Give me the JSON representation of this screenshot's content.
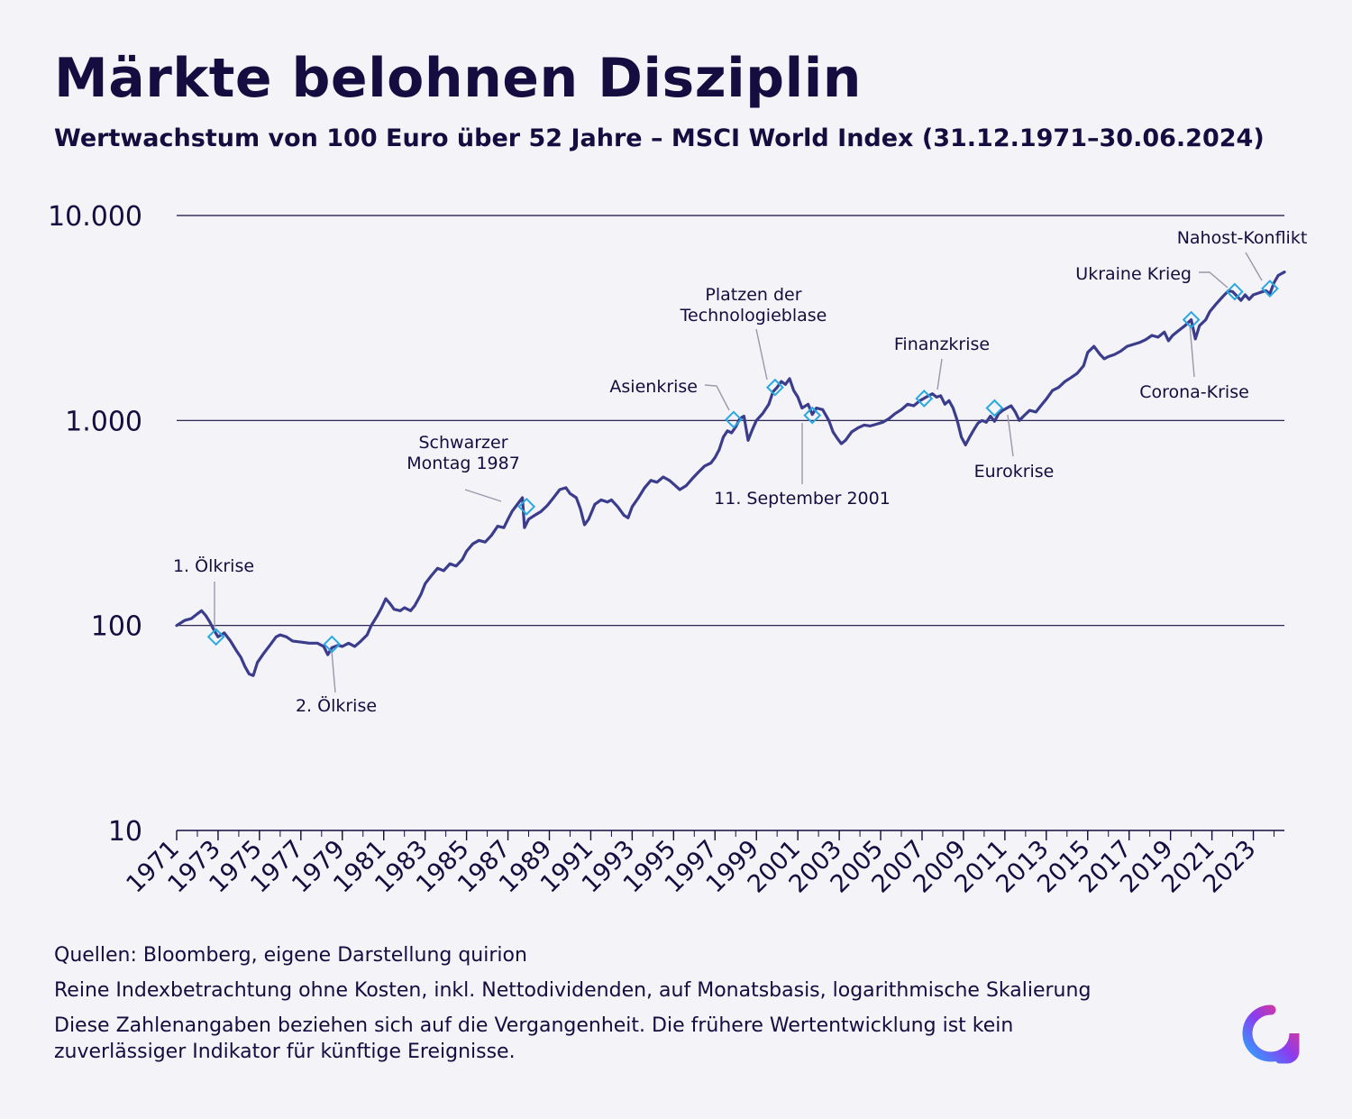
{
  "header": {
    "title": "Märkte belohnen Disziplin",
    "subtitle": "Wertwachstum von 100 Euro über 52 Jahre – MSCI World Index (31.12.1971–30.06.2024)"
  },
  "footer": {
    "sources": "Quellen: Bloomberg, eigene Darstellung quirion",
    "note": "Reine Indexbetrachtung ohne Kosten, inkl. Nettodividenden, auf Monatsbasis, logarithmische Skalierung",
    "disclaimer": "Diese Zahlenangaben beziehen sich auf die Vergangenheit. Die frühere Wertentwicklung ist kein zuverlässiger Indikator für künftige Ereignisse."
  },
  "colors": {
    "line": "#3b3d8c",
    "marker": "#29a8e0",
    "text": "#150d3f",
    "gridline": "#150d3f",
    "background": "#f3f3f8"
  },
  "logo": {
    "icon": "quirion-logo-icon"
  },
  "chart_data": {
    "type": "line",
    "title": "",
    "xlabel": "",
    "ylabel": "",
    "y_scale": "log",
    "xlim": [
      1971,
      2024.5
    ],
    "ylim": [
      10,
      10000
    ],
    "grid": "horizontal",
    "y_ticks": [
      {
        "value": 10,
        "label": "10"
      },
      {
        "value": 100,
        "label": "100"
      },
      {
        "value": 1000,
        "label": "1.000"
      },
      {
        "value": 10000,
        "label": "10.000"
      }
    ],
    "x_ticks": [
      "1971",
      "1973",
      "1975",
      "1977",
      "1979",
      "1981",
      "1983",
      "1985",
      "1987",
      "1989",
      "1991",
      "1993",
      "1995",
      "1997",
      "1999",
      "2001",
      "2003",
      "2005",
      "2007",
      "2009",
      "2011",
      "2013",
      "2015",
      "2017",
      "2019",
      "2021",
      "2023"
    ],
    "series": [
      {
        "values": [
          [
            1971.0,
            100
          ],
          [
            1971.4,
            106
          ],
          [
            1971.7,
            108
          ],
          [
            1972.0,
            114
          ],
          [
            1972.2,
            118
          ],
          [
            1972.4,
            112
          ],
          [
            1972.6,
            104
          ],
          [
            1972.8,
            95
          ],
          [
            1973.0,
            88
          ],
          [
            1973.3,
            92
          ],
          [
            1973.6,
            84
          ],
          [
            1973.9,
            75
          ],
          [
            1974.1,
            70
          ],
          [
            1974.3,
            63
          ],
          [
            1974.5,
            58
          ],
          [
            1974.7,
            57
          ],
          [
            1974.9,
            66
          ],
          [
            1975.2,
            73
          ],
          [
            1975.5,
            80
          ],
          [
            1975.8,
            88
          ],
          [
            1976.0,
            90
          ],
          [
            1976.3,
            88
          ],
          [
            1976.6,
            84
          ],
          [
            1977.0,
            83
          ],
          [
            1977.4,
            82
          ],
          [
            1977.8,
            82
          ],
          [
            1978.1,
            79
          ],
          [
            1978.3,
            72
          ],
          [
            1978.5,
            78
          ],
          [
            1978.8,
            80
          ],
          [
            1979.0,
            79
          ],
          [
            1979.3,
            82
          ],
          [
            1979.6,
            79
          ],
          [
            1979.9,
            84
          ],
          [
            1980.2,
            90
          ],
          [
            1980.4,
            100
          ],
          [
            1980.7,
            112
          ],
          [
            1980.9,
            122
          ],
          [
            1981.1,
            135
          ],
          [
            1981.3,
            128
          ],
          [
            1981.5,
            120
          ],
          [
            1981.8,
            118
          ],
          [
            1982.0,
            122
          ],
          [
            1982.3,
            118
          ],
          [
            1982.5,
            125
          ],
          [
            1982.8,
            142
          ],
          [
            1983.0,
            160
          ],
          [
            1983.3,
            175
          ],
          [
            1983.6,
            190
          ],
          [
            1983.9,
            185
          ],
          [
            1984.2,
            200
          ],
          [
            1984.5,
            195
          ],
          [
            1984.8,
            210
          ],
          [
            1985.0,
            230
          ],
          [
            1985.3,
            250
          ],
          [
            1985.6,
            260
          ],
          [
            1985.9,
            255
          ],
          [
            1986.2,
            275
          ],
          [
            1986.5,
            305
          ],
          [
            1986.8,
            300
          ],
          [
            1987.0,
            330
          ],
          [
            1987.2,
            360
          ],
          [
            1987.5,
            395
          ],
          [
            1987.7,
            420
          ],
          [
            1987.8,
            300
          ],
          [
            1988.0,
            330
          ],
          [
            1988.3,
            345
          ],
          [
            1988.6,
            360
          ],
          [
            1988.9,
            385
          ],
          [
            1989.2,
            420
          ],
          [
            1989.5,
            460
          ],
          [
            1989.8,
            470
          ],
          [
            1990.0,
            440
          ],
          [
            1990.3,
            420
          ],
          [
            1990.5,
            370
          ],
          [
            1990.7,
            310
          ],
          [
            1990.9,
            330
          ],
          [
            1991.2,
            390
          ],
          [
            1991.5,
            410
          ],
          [
            1991.8,
            400
          ],
          [
            1992.0,
            410
          ],
          [
            1992.3,
            380
          ],
          [
            1992.6,
            345
          ],
          [
            1992.8,
            335
          ],
          [
            1993.0,
            380
          ],
          [
            1993.3,
            420
          ],
          [
            1993.6,
            470
          ],
          [
            1993.9,
            510
          ],
          [
            1994.2,
            500
          ],
          [
            1994.5,
            530
          ],
          [
            1994.8,
            510
          ],
          [
            1995.0,
            490
          ],
          [
            1995.3,
            460
          ],
          [
            1995.6,
            480
          ],
          [
            1995.9,
            520
          ],
          [
            1996.2,
            560
          ],
          [
            1996.5,
            600
          ],
          [
            1996.8,
            620
          ],
          [
            1997.0,
            660
          ],
          [
            1997.2,
            720
          ],
          [
            1997.4,
            830
          ],
          [
            1997.6,
            890
          ],
          [
            1997.8,
            870
          ],
          [
            1998.0,
            930
          ],
          [
            1998.2,
            1020
          ],
          [
            1998.4,
            1050
          ],
          [
            1998.6,
            800
          ],
          [
            1998.8,
            900
          ],
          [
            1999.0,
            1000
          ],
          [
            1999.3,
            1080
          ],
          [
            1999.6,
            1200
          ],
          [
            1999.8,
            1380
          ],
          [
            2000.0,
            1450
          ],
          [
            2000.2,
            1550
          ],
          [
            2000.4,
            1500
          ],
          [
            2000.6,
            1600
          ],
          [
            2000.8,
            1400
          ],
          [
            2001.0,
            1300
          ],
          [
            2001.2,
            1150
          ],
          [
            2001.5,
            1200
          ],
          [
            2001.7,
            1070
          ],
          [
            2001.9,
            1150
          ],
          [
            2002.2,
            1130
          ],
          [
            2002.5,
            1000
          ],
          [
            2002.7,
            880
          ],
          [
            2002.9,
            820
          ],
          [
            2003.1,
            770
          ],
          [
            2003.3,
            800
          ],
          [
            2003.6,
            880
          ],
          [
            2003.9,
            920
          ],
          [
            2004.2,
            950
          ],
          [
            2004.5,
            940
          ],
          [
            2004.8,
            960
          ],
          [
            2005.1,
            980
          ],
          [
            2005.4,
            1020
          ],
          [
            2005.7,
            1080
          ],
          [
            2006.0,
            1130
          ],
          [
            2006.3,
            1200
          ],
          [
            2006.6,
            1180
          ],
          [
            2006.9,
            1250
          ],
          [
            2007.2,
            1300
          ],
          [
            2007.5,
            1350
          ],
          [
            2007.7,
            1300
          ],
          [
            2007.9,
            1320
          ],
          [
            2008.1,
            1200
          ],
          [
            2008.3,
            1250
          ],
          [
            2008.5,
            1150
          ],
          [
            2008.7,
            1000
          ],
          [
            2008.9,
            830
          ],
          [
            2009.1,
            760
          ],
          [
            2009.3,
            830
          ],
          [
            2009.5,
            900
          ],
          [
            2009.7,
            970
          ],
          [
            2009.9,
            1000
          ],
          [
            2010.1,
            980
          ],
          [
            2010.3,
            1050
          ],
          [
            2010.5,
            990
          ],
          [
            2010.7,
            1080
          ],
          [
            2010.9,
            1120
          ],
          [
            2011.1,
            1150
          ],
          [
            2011.3,
            1180
          ],
          [
            2011.5,
            1100
          ],
          [
            2011.7,
            1000
          ],
          [
            2011.9,
            1050
          ],
          [
            2012.2,
            1120
          ],
          [
            2012.5,
            1100
          ],
          [
            2012.8,
            1200
          ],
          [
            2013.0,
            1270
          ],
          [
            2013.3,
            1400
          ],
          [
            2013.6,
            1450
          ],
          [
            2013.9,
            1550
          ],
          [
            2014.2,
            1620
          ],
          [
            2014.5,
            1700
          ],
          [
            2014.8,
            1850
          ],
          [
            2015.0,
            2150
          ],
          [
            2015.3,
            2300
          ],
          [
            2015.6,
            2100
          ],
          [
            2015.8,
            2000
          ],
          [
            2016.0,
            2050
          ],
          [
            2016.3,
            2100
          ],
          [
            2016.6,
            2180
          ],
          [
            2016.9,
            2300
          ],
          [
            2017.2,
            2350
          ],
          [
            2017.5,
            2400
          ],
          [
            2017.8,
            2480
          ],
          [
            2018.1,
            2600
          ],
          [
            2018.4,
            2550
          ],
          [
            2018.7,
            2700
          ],
          [
            2018.9,
            2450
          ],
          [
            2019.1,
            2600
          ],
          [
            2019.4,
            2750
          ],
          [
            2019.7,
            2900
          ],
          [
            2020.0,
            3100
          ],
          [
            2020.2,
            2500
          ],
          [
            2020.4,
            2900
          ],
          [
            2020.7,
            3100
          ],
          [
            2020.9,
            3400
          ],
          [
            2021.2,
            3700
          ],
          [
            2021.5,
            4000
          ],
          [
            2021.8,
            4300
          ],
          [
            2022.0,
            4250
          ],
          [
            2022.2,
            4050
          ],
          [
            2022.4,
            3850
          ],
          [
            2022.6,
            4100
          ],
          [
            2022.8,
            3900
          ],
          [
            2023.0,
            4100
          ],
          [
            2023.3,
            4200
          ],
          [
            2023.6,
            4300
          ],
          [
            2023.8,
            4150
          ],
          [
            2024.0,
            4700
          ],
          [
            2024.2,
            5100
          ],
          [
            2024.5,
            5300
          ]
        ]
      }
    ],
    "annotations": [
      {
        "text": "1. Ölkrise",
        "x": 1972.9,
        "y": 88
      },
      {
        "text": "2. Ölkrise",
        "x": 1978.5,
        "y": 81
      },
      {
        "text": "Schwarzer Montag 1987",
        "x": 1987.9,
        "y": 380
      },
      {
        "text": "Asienkrise",
        "x": 1997.9,
        "y": 1010
      },
      {
        "text": "Platzen der Technologieblase",
        "x": 1999.9,
        "y": 1450
      },
      {
        "text": "11. September 2001",
        "x": 2001.7,
        "y": 1060
      },
      {
        "text": "Finanzkrise",
        "x": 2007.1,
        "y": 1280
      },
      {
        "text": "Eurokrise",
        "x": 2010.5,
        "y": 1150
      },
      {
        "text": "Corona-Krise",
        "x": 2020.0,
        "y": 3100
      },
      {
        "text": "Ukraine Krieg",
        "x": 2022.1,
        "y": 4250
      },
      {
        "text": "Nahost-Konflikt",
        "x": 2023.8,
        "y": 4400
      }
    ]
  }
}
